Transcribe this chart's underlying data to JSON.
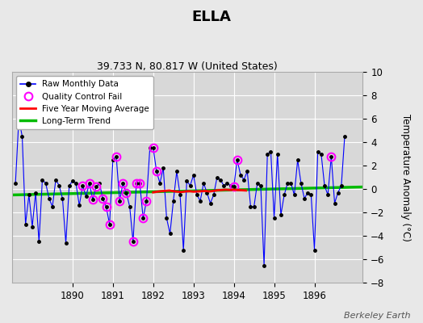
{
  "title": "ELLA",
  "subtitle": "39.733 N, 80.817 W (United States)",
  "ylabel": "Temperature Anomaly (°C)",
  "attribution": "Berkeley Earth",
  "ylim": [
    -8,
    10
  ],
  "xlim": [
    1888.5,
    1897.2
  ],
  "xticks": [
    1890,
    1891,
    1892,
    1893,
    1894,
    1895,
    1896
  ],
  "yticks": [
    -8,
    -6,
    -4,
    -2,
    0,
    2,
    4,
    6,
    8,
    10
  ],
  "plot_bg_color": "#d8d8d8",
  "fig_bg_color": "#e8e8e8",
  "raw_x": [
    1888.583,
    1888.667,
    1888.75,
    1888.833,
    1888.917,
    1889.0,
    1889.083,
    1889.167,
    1889.25,
    1889.333,
    1889.417,
    1889.5,
    1889.583,
    1889.667,
    1889.75,
    1889.833,
    1889.917,
    1890.0,
    1890.083,
    1890.167,
    1890.25,
    1890.333,
    1890.417,
    1890.5,
    1890.583,
    1890.667,
    1890.75,
    1890.833,
    1890.917,
    1891.0,
    1891.083,
    1891.167,
    1891.25,
    1891.333,
    1891.417,
    1891.5,
    1891.583,
    1891.667,
    1891.75,
    1891.833,
    1891.917,
    1892.0,
    1892.083,
    1892.167,
    1892.25,
    1892.333,
    1892.417,
    1892.5,
    1892.583,
    1892.667,
    1892.75,
    1892.833,
    1892.917,
    1893.0,
    1893.083,
    1893.167,
    1893.25,
    1893.333,
    1893.417,
    1893.5,
    1893.583,
    1893.667,
    1893.75,
    1893.833,
    1893.917,
    1894.0,
    1894.083,
    1894.167,
    1894.25,
    1894.333,
    1894.417,
    1894.5,
    1894.583,
    1894.667,
    1894.75,
    1894.833,
    1894.917,
    1895.0,
    1895.083,
    1895.167,
    1895.25,
    1895.333,
    1895.417,
    1895.5,
    1895.583,
    1895.667,
    1895.75,
    1895.833,
    1895.917,
    1896.0,
    1896.083,
    1896.167,
    1896.25,
    1896.333,
    1896.417,
    1896.5,
    1896.583,
    1896.667,
    1896.75
  ],
  "raw_y": [
    0.5,
    6.0,
    4.5,
    -3.0,
    -0.5,
    -3.2,
    -0.3,
    -4.5,
    0.8,
    0.5,
    -0.8,
    -1.5,
    0.8,
    0.3,
    -0.8,
    -4.6,
    0.3,
    0.7,
    0.5,
    -1.4,
    0.3,
    -0.6,
    0.5,
    -0.9,
    0.2,
    0.5,
    -0.8,
    -1.5,
    -3.0,
    2.5,
    2.8,
    -1.0,
    0.5,
    -0.3,
    -1.5,
    -4.5,
    0.5,
    0.5,
    -2.5,
    -1.0,
    3.5,
    3.5,
    1.5,
    0.5,
    1.8,
    -2.5,
    -3.8,
    -1.0,
    1.5,
    -0.5,
    -5.2,
    0.7,
    0.3,
    1.2,
    -0.5,
    -1.0,
    0.5,
    -0.3,
    -1.2,
    -0.5,
    1.0,
    0.8,
    0.3,
    0.5,
    0.3,
    0.2,
    2.5,
    1.2,
    0.8,
    1.5,
    -1.5,
    -1.5,
    0.5,
    0.3,
    -6.5,
    3.0,
    3.2,
    -2.5,
    3.0,
    -2.2,
    -0.5,
    0.5,
    0.5,
    -0.5,
    2.5,
    0.5,
    -0.8,
    -0.3,
    -0.5,
    -5.2,
    3.2,
    3.0,
    0.3,
    -0.5,
    2.8,
    -1.2,
    -0.3,
    0.3,
    4.5
  ],
  "qc_x": [
    1890.25,
    1890.417,
    1890.5,
    1890.583,
    1890.75,
    1890.833,
    1890.917,
    1891.083,
    1891.167,
    1891.25,
    1891.333,
    1891.5,
    1891.583,
    1891.667,
    1891.75,
    1891.833,
    1892.0,
    1892.083,
    1894.0,
    1894.083,
    1896.417
  ],
  "qc_y": [
    0.3,
    0.5,
    -0.9,
    0.2,
    -0.8,
    -1.5,
    -3.0,
    2.8,
    -1.0,
    0.5,
    -0.3,
    -4.5,
    0.5,
    0.5,
    -2.5,
    -1.0,
    3.5,
    1.5,
    0.2,
    2.5,
    2.8
  ],
  "ma_x": [
    1892.0,
    1892.1,
    1892.2,
    1892.3,
    1892.4,
    1892.5,
    1892.6,
    1892.7,
    1892.8,
    1892.9,
    1893.0,
    1893.1,
    1893.2,
    1893.3,
    1893.4,
    1893.5,
    1893.6,
    1893.7,
    1893.8,
    1893.9,
    1894.0,
    1894.1,
    1894.2,
    1894.3
  ],
  "ma_y": [
    -0.28,
    -0.22,
    -0.18,
    -0.15,
    -0.12,
    -0.18,
    -0.22,
    -0.25,
    -0.2,
    -0.18,
    -0.22,
    -0.2,
    -0.18,
    -0.16,
    -0.2,
    -0.15,
    -0.1,
    -0.08,
    -0.05,
    -0.08,
    -0.05,
    -0.08,
    -0.1,
    -0.12
  ],
  "trend_x": [
    1888.5,
    1897.2
  ],
  "trend_y": [
    -0.5,
    0.18
  ],
  "line_color": "#0000ff",
  "dot_color": "#000000",
  "qc_color": "#ff00ff",
  "ma_color": "#ff0000",
  "trend_color": "#00bb00",
  "grid_color": "#ffffff",
  "spine_color": "#aaaaaa"
}
